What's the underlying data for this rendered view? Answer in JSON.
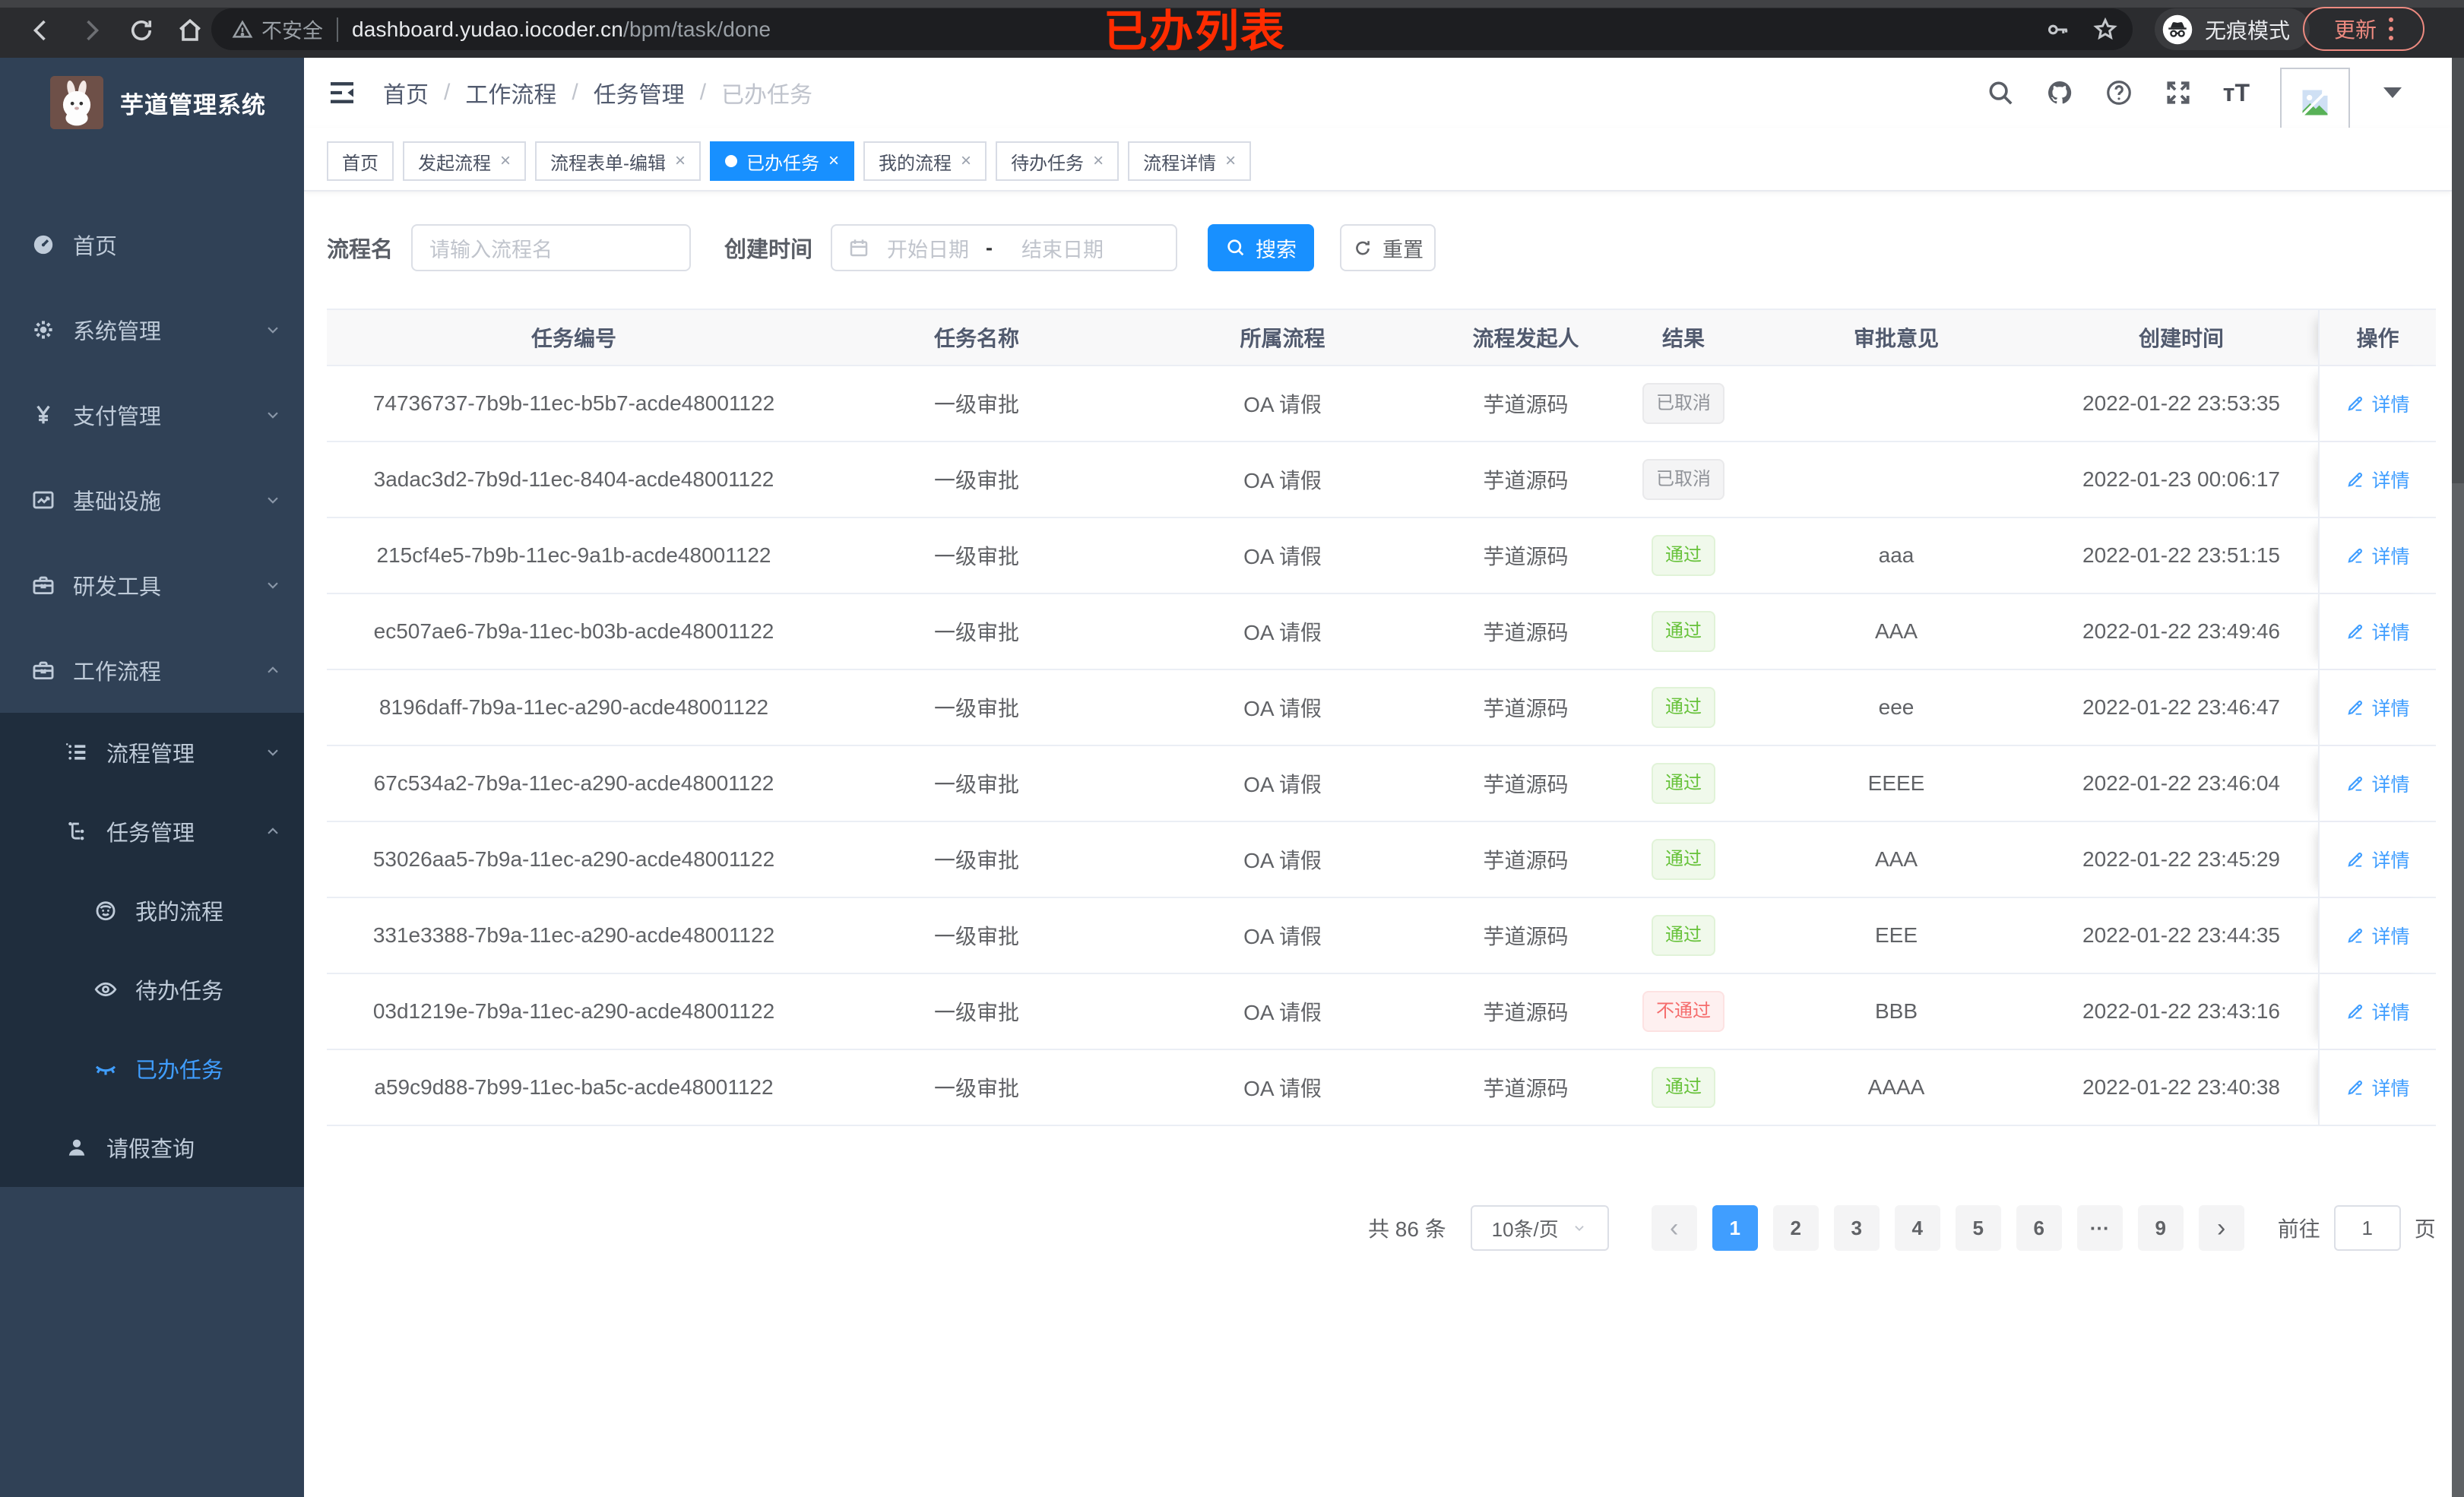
{
  "browser": {
    "security_label": "不安全",
    "url_host": "dashboard.yudao.iocoder.cn",
    "url_path": "/bpm/task/done",
    "incognito_label": "无痕模式",
    "update_label": "更新"
  },
  "annotation": {
    "text": "已办列表",
    "color": "#fe2c00"
  },
  "sidebar": {
    "title": "芋道管理系统",
    "items": [
      {
        "key": "home",
        "label": "首页",
        "icon": "dashboard-icon",
        "level": 1,
        "chevron": "",
        "submenu": false,
        "active": false
      },
      {
        "key": "system-mgmt",
        "label": "系统管理",
        "icon": "gear-icon",
        "level": 1,
        "chevron": "down",
        "submenu": false,
        "active": false
      },
      {
        "key": "payment-mgmt",
        "label": "支付管理",
        "icon": "yen-icon",
        "level": 1,
        "chevron": "down",
        "submenu": false,
        "active": false
      },
      {
        "key": "infrastructure",
        "label": "基础设施",
        "icon": "chart-icon",
        "level": 1,
        "chevron": "down",
        "submenu": false,
        "active": false
      },
      {
        "key": "dev-tools",
        "label": "研发工具",
        "icon": "toolbox-icon",
        "level": 1,
        "chevron": "down",
        "submenu": false,
        "active": false
      },
      {
        "key": "workflow",
        "label": "工作流程",
        "icon": "briefcase-icon",
        "level": 1,
        "chevron": "up",
        "submenu": false,
        "active": false
      },
      {
        "key": "process-mgmt",
        "label": "流程管理",
        "icon": "list-icon",
        "level": 2,
        "chevron": "down",
        "submenu": true,
        "active": false
      },
      {
        "key": "task-mgmt",
        "label": "任务管理",
        "icon": "tree-icon",
        "level": 2,
        "chevron": "up",
        "submenu": true,
        "active": false
      },
      {
        "key": "my-process",
        "label": "我的流程",
        "icon": "robot-icon",
        "level": 3,
        "chevron": "",
        "submenu": true,
        "active": false
      },
      {
        "key": "todo-tasks",
        "label": "待办任务",
        "icon": "eye-open-icon",
        "level": 3,
        "chevron": "",
        "submenu": true,
        "active": false
      },
      {
        "key": "done-tasks",
        "label": "已办任务",
        "icon": "eye-closed-icon",
        "level": 3,
        "chevron": "",
        "submenu": true,
        "active": true
      },
      {
        "key": "leave-query",
        "label": "请假查询",
        "icon": "user-icon",
        "level": 2,
        "chevron": "",
        "submenu": true,
        "active": false
      }
    ]
  },
  "header": {
    "breadcrumb": [
      "首页",
      "工作流程",
      "任务管理",
      "已办任务"
    ]
  },
  "tabs": [
    {
      "key": "home",
      "label": "首页",
      "closable": false,
      "active": false
    },
    {
      "key": "start-process",
      "label": "发起流程",
      "closable": true,
      "active": false
    },
    {
      "key": "form-edit",
      "label": "流程表单-编辑",
      "closable": true,
      "active": false
    },
    {
      "key": "done-tasks",
      "label": "已办任务",
      "closable": true,
      "active": true
    },
    {
      "key": "my-process",
      "label": "我的流程",
      "closable": true,
      "active": false
    },
    {
      "key": "todo-tasks",
      "label": "待办任务",
      "closable": true,
      "active": false
    },
    {
      "key": "process-detail",
      "label": "流程详情",
      "closable": true,
      "active": false
    }
  ],
  "filters": {
    "name_label": "流程名",
    "name_placeholder": "请输入流程名",
    "date_label": "创建时间",
    "start_placeholder": "开始日期",
    "range_separator": "-",
    "end_placeholder": "结束日期",
    "search_label": "搜索",
    "reset_label": "重置"
  },
  "table": {
    "columns": [
      "任务编号",
      "任务名称",
      "所属流程",
      "流程发起人",
      "结果",
      "审批意见",
      "创建时间",
      "操作"
    ],
    "action_label": "详情",
    "rows": [
      {
        "id": "74736737-7b9b-11ec-b5b7-acde48001122",
        "name": "一级审批",
        "flow": "OA 请假",
        "initiator": "芋道源码",
        "result": "已取消",
        "result_type": "info",
        "comment": "",
        "created": "2022-01-22 23:53:35"
      },
      {
        "id": "3adac3d2-7b9d-11ec-8404-acde48001122",
        "name": "一级审批",
        "flow": "OA 请假",
        "initiator": "芋道源码",
        "result": "已取消",
        "result_type": "info",
        "comment": "",
        "created": "2022-01-23 00:06:17"
      },
      {
        "id": "215cf4e5-7b9b-11ec-9a1b-acde48001122",
        "name": "一级审批",
        "flow": "OA 请假",
        "initiator": "芋道源码",
        "result": "通过",
        "result_type": "success",
        "comment": "aaa",
        "created": "2022-01-22 23:51:15"
      },
      {
        "id": "ec507ae6-7b9a-11ec-b03b-acde48001122",
        "name": "一级审批",
        "flow": "OA 请假",
        "initiator": "芋道源码",
        "result": "通过",
        "result_type": "success",
        "comment": "AAA",
        "created": "2022-01-22 23:49:46"
      },
      {
        "id": "8196daff-7b9a-11ec-a290-acde48001122",
        "name": "一级审批",
        "flow": "OA 请假",
        "initiator": "芋道源码",
        "result": "通过",
        "result_type": "success",
        "comment": "eee",
        "created": "2022-01-22 23:46:47"
      },
      {
        "id": "67c534a2-7b9a-11ec-a290-acde48001122",
        "name": "一级审批",
        "flow": "OA 请假",
        "initiator": "芋道源码",
        "result": "通过",
        "result_type": "success",
        "comment": "EEEE",
        "created": "2022-01-22 23:46:04"
      },
      {
        "id": "53026aa5-7b9a-11ec-a290-acde48001122",
        "name": "一级审批",
        "flow": "OA 请假",
        "initiator": "芋道源码",
        "result": "通过",
        "result_type": "success",
        "comment": "AAA",
        "created": "2022-01-22 23:45:29"
      },
      {
        "id": "331e3388-7b9a-11ec-a290-acde48001122",
        "name": "一级审批",
        "flow": "OA 请假",
        "initiator": "芋道源码",
        "result": "通过",
        "result_type": "success",
        "comment": "EEE",
        "created": "2022-01-22 23:44:35"
      },
      {
        "id": "03d1219e-7b9a-11ec-a290-acde48001122",
        "name": "一级审批",
        "flow": "OA 请假",
        "initiator": "芋道源码",
        "result": "不通过",
        "result_type": "fail",
        "comment": "BBB",
        "created": "2022-01-22 23:43:16"
      },
      {
        "id": "a59c9d88-7b99-11ec-ba5c-acde48001122",
        "name": "一级审批",
        "flow": "OA 请假",
        "initiator": "芋道源码",
        "result": "通过",
        "result_type": "success",
        "comment": "AAAA",
        "created": "2022-01-22 23:40:38"
      }
    ]
  },
  "pagination": {
    "total_text": "共 86 条",
    "page_size": "10条/页",
    "prev": "‹",
    "next": "›",
    "pages": [
      "1",
      "2",
      "3",
      "4",
      "5",
      "6",
      "···",
      "9"
    ],
    "active_page": "1",
    "goto_label": "前往",
    "goto_value": "1",
    "unit_label": "页"
  },
  "colors": {
    "accent": "#1890ff",
    "link": "#409eff",
    "success": "#67c23a",
    "danger": "#f56c6c",
    "info": "#909399",
    "sidebar_bg": "#304156",
    "submenu_bg": "#1f2d3d",
    "annotation_red": "#fe2c00"
  }
}
